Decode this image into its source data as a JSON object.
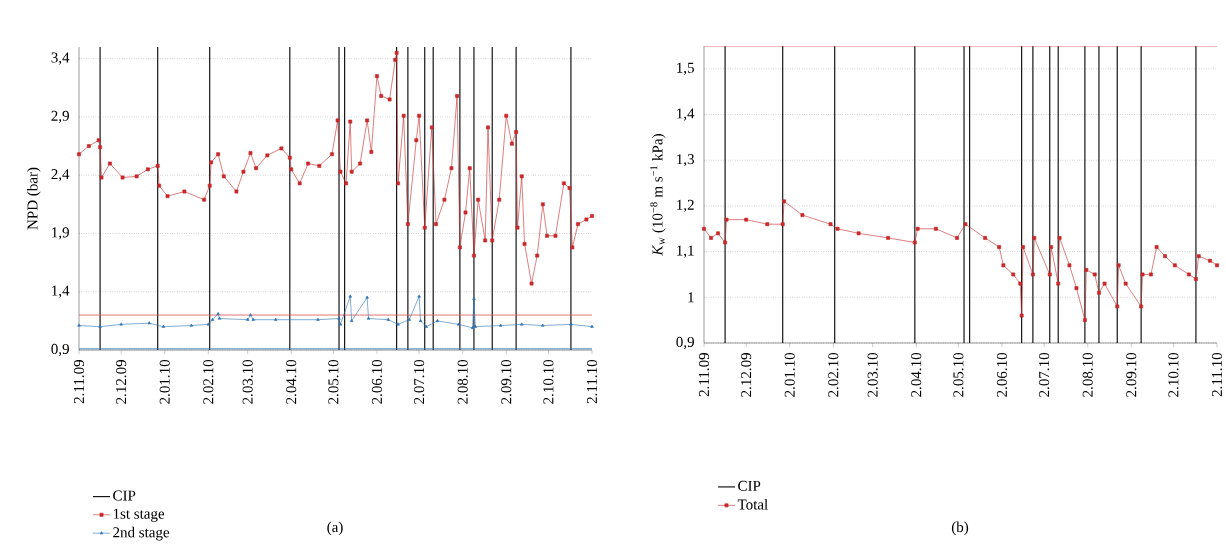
{
  "chart_data": [
    {
      "type": "line",
      "ylabel": "NPD (bar)",
      "annotations": [
        "(a)"
      ],
      "grid": "y",
      "legend": "bottom",
      "xlim": [
        "2009-11-02",
        "2010-11-02"
      ],
      "ylim": [
        0.9,
        3.5
      ],
      "xticks": [
        {
          "value": "2009-11-02",
          "label": "2.11.09"
        },
        {
          "value": "2009-12-02",
          "label": "2.12.09"
        },
        {
          "value": "2010-01-02",
          "label": "2.01.10"
        },
        {
          "value": "2010-02-02",
          "label": "2.02.10"
        },
        {
          "value": "2010-03-02",
          "label": "2.03.10"
        },
        {
          "value": "2010-04-02",
          "label": "2.04.10"
        },
        {
          "value": "2010-05-02",
          "label": "2.05.10"
        },
        {
          "value": "2010-06-02",
          "label": "2.06.10"
        },
        {
          "value": "2010-07-02",
          "label": "2.07.10"
        },
        {
          "value": "2010-08-02",
          "label": "2.08.10"
        },
        {
          "value": "2010-09-02",
          "label": "2.09.10"
        },
        {
          "value": "2010-10-02",
          "label": "2.10.10"
        },
        {
          "value": "2010-11-02",
          "label": "2.11.10"
        }
      ],
      "yticks": [
        {
          "value": 0.9,
          "label": "0,9"
        },
        {
          "value": 1.4,
          "label": "1,4"
        },
        {
          "value": 1.9,
          "label": "1,9"
        },
        {
          "value": 2.4,
          "label": "2,4"
        },
        {
          "value": 2.9,
          "label": "2,9"
        },
        {
          "value": 3.4,
          "label": "3,4"
        }
      ],
      "ref_lines": [
        {
          "axis": "x",
          "value": "2009-11-17",
          "label": "CIP",
          "color": "#000000"
        },
        {
          "axis": "x",
          "value": "2009-12-28"
        },
        {
          "axis": "x",
          "value": "2010-02-03"
        },
        {
          "axis": "x",
          "value": "2010-04-01"
        },
        {
          "axis": "x",
          "value": "2010-05-06"
        },
        {
          "axis": "x",
          "value": "2010-05-10"
        },
        {
          "axis": "x",
          "value": "2010-06-16"
        },
        {
          "axis": "x",
          "value": "2010-06-24"
        },
        {
          "axis": "x",
          "value": "2010-07-06"
        },
        {
          "axis": "x",
          "value": "2010-07-12"
        },
        {
          "axis": "x",
          "value": "2010-07-31"
        },
        {
          "axis": "x",
          "value": "2010-08-10"
        },
        {
          "axis": "x",
          "value": "2010-08-23"
        },
        {
          "axis": "x",
          "value": "2010-09-09"
        },
        {
          "axis": "x",
          "value": "2010-10-18"
        },
        {
          "axis": "y",
          "value": 1.2,
          "color": "#d9534f"
        },
        {
          "axis": "y",
          "value": 0.91,
          "color": "#2e75b6"
        }
      ],
      "series": [
        {
          "name": "1st stage",
          "color": "#c8282a",
          "marker": "square",
          "x": [
            "2009-11-02",
            "2009-11-09",
            "2009-11-16",
            "2009-11-17",
            "2009-11-18",
            "2009-11-24",
            "2009-12-03",
            "2009-12-13",
            "2009-12-21",
            "2009-12-28",
            "2009-12-29",
            "2010-01-04",
            "2010-01-16",
            "2010-01-30",
            "2010-02-03",
            "2010-02-04",
            "2010-02-09",
            "2010-02-13",
            "2010-02-22",
            "2010-02-27",
            "2010-03-04",
            "2010-03-08",
            "2010-03-16",
            "2010-03-26",
            "2010-04-01",
            "2010-04-02",
            "2010-04-08",
            "2010-04-14",
            "2010-04-22",
            "2010-05-01",
            "2010-05-05",
            "2010-05-07",
            "2010-05-11",
            "2010-05-14",
            "2010-05-15",
            "2010-05-21",
            "2010-05-26",
            "2010-05-29",
            "2010-06-02",
            "2010-06-05",
            "2010-06-11",
            "2010-06-15",
            "2010-06-16",
            "2010-06-17",
            "2010-06-21",
            "2010-06-24",
            "2010-06-30",
            "2010-07-02",
            "2010-07-06",
            "2010-07-11",
            "2010-07-14",
            "2010-07-20",
            "2010-07-25",
            "2010-07-29",
            "2010-07-31",
            "2010-08-04",
            "2010-08-07",
            "2010-08-10",
            "2010-08-13",
            "2010-08-18",
            "2010-08-20",
            "2010-08-23",
            "2010-08-28",
            "2010-09-02",
            "2010-09-06",
            "2010-09-09",
            "2010-09-10",
            "2010-09-13",
            "2010-09-15",
            "2010-09-20",
            "2010-09-24",
            "2010-09-28",
            "2010-10-01",
            "2010-10-07",
            "2010-10-13",
            "2010-10-17",
            "2010-10-19",
            "2010-10-23",
            "2010-10-29",
            "2010-11-02"
          ],
          "values": [
            2.58,
            2.65,
            2.7,
            2.64,
            2.38,
            2.5,
            2.38,
            2.39,
            2.45,
            2.48,
            2.31,
            2.22,
            2.26,
            2.19,
            2.31,
            2.51,
            2.58,
            2.39,
            2.26,
            2.43,
            2.59,
            2.46,
            2.57,
            2.63,
            2.55,
            2.45,
            2.33,
            2.5,
            2.48,
            2.58,
            2.87,
            2.43,
            2.33,
            2.86,
            2.43,
            2.5,
            2.87,
            2.6,
            3.25,
            3.08,
            3.05,
            3.39,
            3.45,
            2.33,
            2.91,
            1.98,
            2.7,
            2.91,
            1.95,
            2.81,
            1.98,
            2.19,
            2.46,
            3.08,
            1.78,
            2.08,
            2.46,
            1.71,
            2.19,
            1.84,
            2.81,
            1.84,
            2.19,
            2.91,
            2.67,
            2.77,
            1.95,
            2.39,
            1.81,
            1.47,
            1.71,
            2.15,
            1.88,
            1.88,
            2.33,
            2.29,
            1.78,
            1.98,
            2.02,
            2.05
          ]
        },
        {
          "name": "2nd stage",
          "color": "#2e75b6",
          "marker": "triangle",
          "x": [
            "2009-11-02",
            "2009-11-17",
            "2009-12-02",
            "2009-12-22",
            "2010-01-01",
            "2010-01-21",
            "2010-02-02",
            "2010-02-05",
            "2010-02-09",
            "2010-02-10",
            "2010-03-02",
            "2010-03-04",
            "2010-03-06",
            "2010-03-22",
            "2010-04-21",
            "2010-05-06",
            "2010-05-07",
            "2010-05-14",
            "2010-05-15",
            "2010-05-26",
            "2010-05-27",
            "2010-06-10",
            "2010-06-17",
            "2010-06-25",
            "2010-07-02",
            "2010-07-03",
            "2010-07-07",
            "2010-07-15",
            "2010-07-30",
            "2010-08-09",
            "2010-08-10",
            "2010-08-11",
            "2010-08-29",
            "2010-09-13",
            "2010-09-28",
            "2010-10-18",
            "2010-11-02"
          ],
          "values": [
            1.11,
            1.1,
            1.12,
            1.13,
            1.1,
            1.11,
            1.12,
            1.16,
            1.21,
            1.17,
            1.16,
            1.2,
            1.16,
            1.16,
            1.16,
            1.17,
            1.12,
            1.36,
            1.15,
            1.35,
            1.17,
            1.16,
            1.12,
            1.16,
            1.36,
            1.15,
            1.1,
            1.15,
            1.12,
            1.09,
            1.34,
            1.1,
            1.11,
            1.12,
            1.11,
            1.12,
            1.1
          ]
        }
      ]
    },
    {
      "type": "line",
      "ylabel": "*K*$_{w}$ (10$^{−8}$ m s$^{−1}$ kPa)",
      "annotations": [
        "(b)"
      ],
      "grid": "y",
      "legend": "bottom",
      "xlim": [
        "2009-11-02",
        "2010-11-02"
      ],
      "ylim": [
        0.9,
        1.55
      ],
      "xticks": [
        {
          "value": "2009-11-02",
          "label": "2.11.09"
        },
        {
          "value": "2009-12-02",
          "label": "2.12.09"
        },
        {
          "value": "2010-01-02",
          "label": "2.01.10"
        },
        {
          "value": "2010-02-02",
          "label": "2.02.10"
        },
        {
          "value": "2010-03-02",
          "label": "2.03.10"
        },
        {
          "value": "2010-04-02",
          "label": "2.04.10"
        },
        {
          "value": "2010-05-02",
          "label": "2.05.10"
        },
        {
          "value": "2010-06-02",
          "label": "2.06.10"
        },
        {
          "value": "2010-07-02",
          "label": "2.07.10"
        },
        {
          "value": "2010-08-02",
          "label": "2.08.10"
        },
        {
          "value": "2010-09-02",
          "label": "2.09.10"
        },
        {
          "value": "2010-10-02",
          "label": "2.10.10"
        },
        {
          "value": "2010-11-02",
          "label": "2.11.10"
        }
      ],
      "yticks": [
        {
          "value": 0.9,
          "label": "0,9"
        },
        {
          "value": 1,
          "label": "1"
        },
        {
          "value": 1.1,
          "label": "1,1"
        },
        {
          "value": 1.2,
          "label": "1,2"
        },
        {
          "value": 1.3,
          "label": "1,3"
        },
        {
          "value": 1.4,
          "label": "1,4"
        },
        {
          "value": 1.5,
          "label": "1,5"
        }
      ],
      "ref_lines": [
        {
          "axis": "x",
          "value": "2009-11-17",
          "label": "CIP",
          "color": "#000000"
        },
        {
          "axis": "x",
          "value": "2009-12-28"
        },
        {
          "axis": "x",
          "value": "2010-02-03"
        },
        {
          "axis": "x",
          "value": "2010-04-01"
        },
        {
          "axis": "x",
          "value": "2010-05-06"
        },
        {
          "axis": "x",
          "value": "2010-05-10"
        },
        {
          "axis": "x",
          "value": "2010-06-16"
        },
        {
          "axis": "x",
          "value": "2010-06-24"
        },
        {
          "axis": "x",
          "value": "2010-07-06"
        },
        {
          "axis": "x",
          "value": "2010-07-12"
        },
        {
          "axis": "x",
          "value": "2010-07-31"
        },
        {
          "axis": "x",
          "value": "2010-08-10"
        },
        {
          "axis": "x",
          "value": "2010-08-23"
        },
        {
          "axis": "x",
          "value": "2010-09-09"
        },
        {
          "axis": "x",
          "value": "2010-10-18"
        },
        {
          "axis": "y",
          "value": 1.55,
          "color": "#d9534f"
        }
      ],
      "series": [
        {
          "name": "Total",
          "color": "#c8282a",
          "marker": "square",
          "x": [
            "2009-11-02",
            "2009-11-07",
            "2009-11-12",
            "2009-11-17",
            "2009-11-18",
            "2009-12-02",
            "2009-12-17",
            "2009-12-28",
            "2009-12-29",
            "2010-01-11",
            "2010-01-31",
            "2010-02-05",
            "2010-02-20",
            "2010-03-13",
            "2010-04-01",
            "2010-04-03",
            "2010-04-16",
            "2010-05-01",
            "2010-05-07",
            "2010-05-21",
            "2010-05-31",
            "2010-06-03",
            "2010-06-10",
            "2010-06-15",
            "2010-06-16",
            "2010-06-17",
            "2010-06-24",
            "2010-06-25",
            "2010-07-06",
            "2010-07-07",
            "2010-07-12",
            "2010-07-13",
            "2010-07-20",
            "2010-07-25",
            "2010-07-31",
            "2010-08-01",
            "2010-08-07",
            "2010-08-10",
            "2010-08-14",
            "2010-08-23",
            "2010-08-24",
            "2010-08-29",
            "2010-09-09",
            "2010-09-10",
            "2010-09-16",
            "2010-09-20",
            "2010-09-26",
            "2010-10-03",
            "2010-10-13",
            "2010-10-18",
            "2010-10-20",
            "2010-10-28",
            "2010-11-02"
          ],
          "values": [
            1.15,
            1.13,
            1.14,
            1.12,
            1.17,
            1.17,
            1.16,
            1.16,
            1.21,
            1.18,
            1.16,
            1.15,
            1.14,
            1.13,
            1.12,
            1.15,
            1.15,
            1.13,
            1.16,
            1.13,
            1.11,
            1.07,
            1.05,
            1.03,
            0.96,
            1.11,
            1.05,
            1.13,
            1.05,
            1.11,
            1.03,
            1.13,
            1.07,
            1.02,
            0.95,
            1.06,
            1.05,
            1.01,
            1.03,
            0.98,
            1.07,
            1.03,
            0.98,
            1.05,
            1.05,
            1.11,
            1.09,
            1.07,
            1.05,
            1.04,
            1.09,
            1.08,
            1.07
          ]
        }
      ]
    }
  ]
}
